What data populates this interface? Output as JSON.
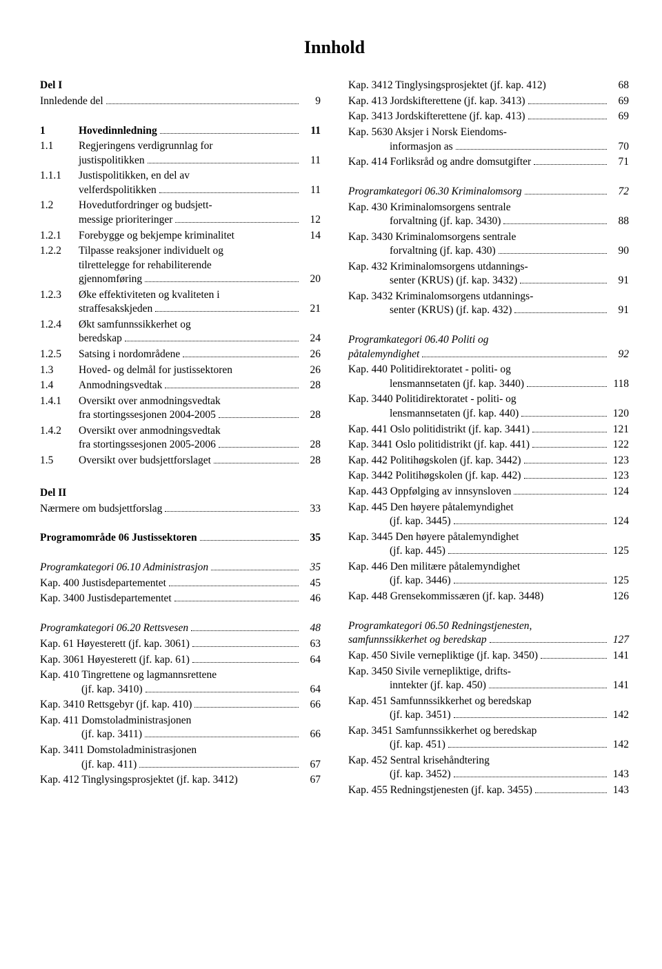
{
  "title": "Innhold",
  "left": [
    {
      "type": "row",
      "bold": true,
      "num": "Del I",
      "lines": [
        ""
      ]
    },
    {
      "type": "row",
      "num": "",
      "lines": [
        "Innledende del"
      ],
      "pg": "9"
    },
    {
      "type": "gap",
      "size": "md"
    },
    {
      "type": "row",
      "bold": true,
      "num": "1",
      "numw": "48px",
      "lines": [
        "Hovedinnledning"
      ],
      "pg": "11"
    },
    {
      "type": "row",
      "num": "1.1",
      "numw": "48px",
      "lines": [
        "Regjeringens verdigrunnlag for",
        "justispolitikken"
      ],
      "pg": "11"
    },
    {
      "type": "row",
      "num": "1.1.1",
      "numw": "48px",
      "lines": [
        "Justispolitikken, en del av",
        "velferdspolitikken"
      ],
      "pg": "11"
    },
    {
      "type": "row",
      "num": "1.2",
      "numw": "48px",
      "lines": [
        "Hovedutfordringer og budsjett-",
        "messige prioriteringer"
      ],
      "pg": "12"
    },
    {
      "type": "row",
      "num": "1.2.1",
      "numw": "48px",
      "lines": [
        "Forebygge og bekjempe kriminalitet"
      ],
      "pg": "14",
      "tight": true
    },
    {
      "type": "row",
      "num": "1.2.2",
      "numw": "48px",
      "lines": [
        "Tilpasse reaksjoner individuelt og",
        "tilrettelegge for rehabiliterende",
        "gjennomføring"
      ],
      "pg": "20"
    },
    {
      "type": "row",
      "num": "1.2.3",
      "numw": "48px",
      "lines": [
        "Øke effektiviteten og kvaliteten i",
        "straffesakskjeden"
      ],
      "pg": "21"
    },
    {
      "type": "row",
      "num": "1.2.4",
      "numw": "48px",
      "lines": [
        "Økt samfunnssikkerhet og",
        "beredskap"
      ],
      "pg": "24"
    },
    {
      "type": "row",
      "num": "1.2.5",
      "numw": "48px",
      "lines": [
        "Satsing i nordområdene"
      ],
      "pg": "26"
    },
    {
      "type": "row",
      "num": "1.3",
      "numw": "48px",
      "lines": [
        "Hoved- og delmål for justissektoren"
      ],
      "pg": "26",
      "tight": true
    },
    {
      "type": "row",
      "num": "1.4",
      "numw": "48px",
      "lines": [
        "Anmodningsvedtak"
      ],
      "pg": "28"
    },
    {
      "type": "row",
      "num": "1.4.1",
      "numw": "48px",
      "lines": [
        "Oversikt over anmodningsvedtak",
        "fra stortingssesjonen 2004-2005"
      ],
      "pg": "28"
    },
    {
      "type": "row",
      "num": "1.4.2",
      "numw": "48px",
      "lines": [
        "Oversikt over anmodningsvedtak",
        "fra stortingssesjonen 2005-2006"
      ],
      "pg": "28"
    },
    {
      "type": "row",
      "num": "1.5",
      "numw": "48px",
      "lines": [
        "Oversikt over budsjettforslaget"
      ],
      "pg": "28"
    },
    {
      "type": "gap",
      "size": "lg"
    },
    {
      "type": "row",
      "bold": true,
      "num": "Del II",
      "lines": [
        ""
      ]
    },
    {
      "type": "row",
      "num": "",
      "lines": [
        "Nærmere om budsjettforslag"
      ],
      "pg": "33"
    },
    {
      "type": "gap",
      "size": "md"
    },
    {
      "type": "row",
      "bold": true,
      "num": "",
      "lines": [
        "Programområde 06 Justissektoren"
      ],
      "pg": "35"
    },
    {
      "type": "gap",
      "size": "md"
    },
    {
      "type": "row",
      "italic": true,
      "num": "",
      "lines": [
        "Programkategori 06.10 Administrasjon"
      ],
      "pg": "35"
    },
    {
      "type": "row",
      "num": "",
      "lines": [
        "Kap. 400 Justisdepartementet"
      ],
      "pg": "45"
    },
    {
      "type": "row",
      "num": "",
      "lines": [
        "Kap. 3400 Justisdepartementet"
      ],
      "pg": "46"
    },
    {
      "type": "gap",
      "size": "md"
    },
    {
      "type": "row",
      "italic": true,
      "num": "",
      "lines": [
        "Programkategori 06.20 Rettsvesen"
      ],
      "pg": "48"
    },
    {
      "type": "row",
      "num": "",
      "lines": [
        "Kap. 61 Høyesterett (jf. kap. 3061)"
      ],
      "pg": "63"
    },
    {
      "type": "row",
      "num": "",
      "lines": [
        "Kap. 3061 Høyesterett (jf. kap. 61)"
      ],
      "pg": "64"
    },
    {
      "type": "row",
      "num": "",
      "lines": [
        "Kap. 410 Tingrettene og lagmannsrettene"
      ],
      "indent2": "60px",
      "line2": "(jf. kap. 3410)",
      "pg": "64"
    },
    {
      "type": "row",
      "num": "",
      "lines": [
        "Kap. 3410 Rettsgebyr (jf. kap. 410)"
      ],
      "pg": "66"
    },
    {
      "type": "row",
      "num": "",
      "lines": [
        "Kap. 411 Domstoladministrasjonen"
      ],
      "indent2": "60px",
      "line2": "(jf. kap. 3411)",
      "pg": "66"
    },
    {
      "type": "row",
      "num": "",
      "lines": [
        "Kap. 3411 Domstoladministrasjonen"
      ],
      "indent2": "60px",
      "line2": "(jf. kap. 411)",
      "pg": "67"
    },
    {
      "type": "row",
      "num": "",
      "lines": [
        "Kap. 412 Tinglysingsprosjektet (jf. kap. 3412)"
      ],
      "pg": "67",
      "tight": true
    }
  ],
  "right": [
    {
      "type": "row",
      "num": "",
      "lines": [
        "Kap. 3412 Tinglysingsprosjektet (jf. kap. 412)"
      ],
      "pg": "68",
      "tight": true
    },
    {
      "type": "row",
      "num": "",
      "lines": [
        "Kap. 413 Jordskifterettene (jf. kap. 3413)"
      ],
      "pg": "69"
    },
    {
      "type": "row",
      "num": "",
      "lines": [
        "Kap. 3413 Jordskifterettene (jf. kap. 413)"
      ],
      "pg": "69"
    },
    {
      "type": "row",
      "num": "",
      "lines": [
        "Kap. 5630 Aksjer i Norsk Eiendoms-"
      ],
      "indent2": "60px",
      "line2": "informasjon as",
      "pg": "70"
    },
    {
      "type": "row",
      "num": "",
      "lines": [
        "Kap. 414 Forliksråd og andre domsutgifter"
      ],
      "pg": "71"
    },
    {
      "type": "gap",
      "size": "md"
    },
    {
      "type": "row",
      "italic": true,
      "num": "",
      "lines": [
        "Programkategori 06.30 Kriminalomsorg"
      ],
      "pg": "72"
    },
    {
      "type": "row",
      "num": "",
      "lines": [
        "Kap. 430 Kriminalomsorgens sentrale"
      ],
      "indent2": "60px",
      "line2": "forvaltning (jf. kap. 3430)",
      "pg": "88"
    },
    {
      "type": "row",
      "num": "",
      "lines": [
        "Kap. 3430 Kriminalomsorgens sentrale"
      ],
      "indent2": "60px",
      "line2": "forvaltning (jf. kap. 430)",
      "pg": "90"
    },
    {
      "type": "row",
      "num": "",
      "lines": [
        "Kap. 432 Kriminalomsorgens utdannings-"
      ],
      "indent2": "60px",
      "line2": "senter (KRUS) (jf. kap. 3432)",
      "pg": "91"
    },
    {
      "type": "row",
      "num": "",
      "lines": [
        "Kap. 3432 Kriminalomsorgens utdannings-"
      ],
      "indent2": "60px",
      "line2": "senter (KRUS) (jf. kap. 432)",
      "pg": "91"
    },
    {
      "type": "gap",
      "size": "md"
    },
    {
      "type": "row",
      "italic": true,
      "num": "",
      "lines": [
        "Programkategori 06.40 Politi og",
        "påtalemyndighet"
      ],
      "pg": "92"
    },
    {
      "type": "row",
      "num": "",
      "lines": [
        "Kap. 440 Politidirektoratet - politi- og"
      ],
      "indent2": "60px",
      "line2": "lensmannsetaten (jf. kap. 3440)",
      "pg": "118"
    },
    {
      "type": "row",
      "num": "",
      "lines": [
        "Kap. 3440 Politidirektoratet - politi- og"
      ],
      "indent2": "60px",
      "line2": "lensmannsetaten (jf. kap. 440)",
      "pg": "120"
    },
    {
      "type": "row",
      "num": "",
      "lines": [
        "Kap. 441 Oslo politidistrikt (jf. kap. 3441)"
      ],
      "pg": "121"
    },
    {
      "type": "row",
      "num": "",
      "lines": [
        "Kap. 3441 Oslo politidistrikt (jf. kap. 441)"
      ],
      "pg": "122"
    },
    {
      "type": "row",
      "num": "",
      "lines": [
        "Kap. 442 Politihøgskolen (jf. kap. 3442)"
      ],
      "pg": "123"
    },
    {
      "type": "row",
      "num": "",
      "lines": [
        "Kap. 3442 Politihøgskolen (jf. kap. 442)"
      ],
      "pg": "123"
    },
    {
      "type": "row",
      "num": "",
      "lines": [
        "Kap. 443 Oppfølging av innsynsloven"
      ],
      "pg": "124"
    },
    {
      "type": "row",
      "num": "",
      "lines": [
        "Kap. 445 Den høyere påtalemyndighet"
      ],
      "indent2": "60px",
      "line2": "(jf. kap. 3445)",
      "pg": "124"
    },
    {
      "type": "row",
      "num": "",
      "lines": [
        "Kap. 3445 Den høyere påtalemyndighet"
      ],
      "indent2": "60px",
      "line2": "(jf. kap. 445)",
      "pg": "125"
    },
    {
      "type": "row",
      "num": "",
      "lines": [
        "Kap. 446 Den militære påtalemyndighet"
      ],
      "indent2": "60px",
      "line2": "(jf. kap. 3446)",
      "pg": "125"
    },
    {
      "type": "row",
      "num": "",
      "lines": [
        "Kap. 448 Grensekommissæren (jf. kap. 3448)"
      ],
      "pg": "126",
      "tight": true
    },
    {
      "type": "gap",
      "size": "md"
    },
    {
      "type": "row",
      "italic": true,
      "num": "",
      "lines": [
        "Programkategori 06.50 Redningstjenesten,",
        "samfunnssikkerhet og beredskap"
      ],
      "pg": "127"
    },
    {
      "type": "row",
      "num": "",
      "lines": [
        "Kap. 450 Sivile vernepliktige (jf. kap. 3450)"
      ],
      "pg": "141"
    },
    {
      "type": "row",
      "num": "",
      "lines": [
        "Kap. 3450 Sivile vernepliktige, drifts-"
      ],
      "indent2": "60px",
      "line2": "inntekter (jf. kap. 450)",
      "pg": "141"
    },
    {
      "type": "row",
      "num": "",
      "lines": [
        "Kap. 451 Samfunnssikkerhet og beredskap"
      ],
      "indent2": "60px",
      "line2": "(jf. kap. 3451)",
      "pg": "142"
    },
    {
      "type": "row",
      "num": "",
      "lines": [
        "Kap. 3451 Samfunnssikkerhet og beredskap"
      ],
      "indent2": "60px",
      "line2": "(jf. kap. 451)",
      "pg": "142"
    },
    {
      "type": "row",
      "num": "",
      "lines": [
        "Kap. 452 Sentral krisehåndtering"
      ],
      "indent2": "60px",
      "line2": "(jf. kap. 3452)",
      "pg": "143"
    },
    {
      "type": "row",
      "num": "",
      "lines": [
        "Kap. 455 Redningstjenesten (jf. kap. 3455)"
      ],
      "pg": "143"
    }
  ]
}
